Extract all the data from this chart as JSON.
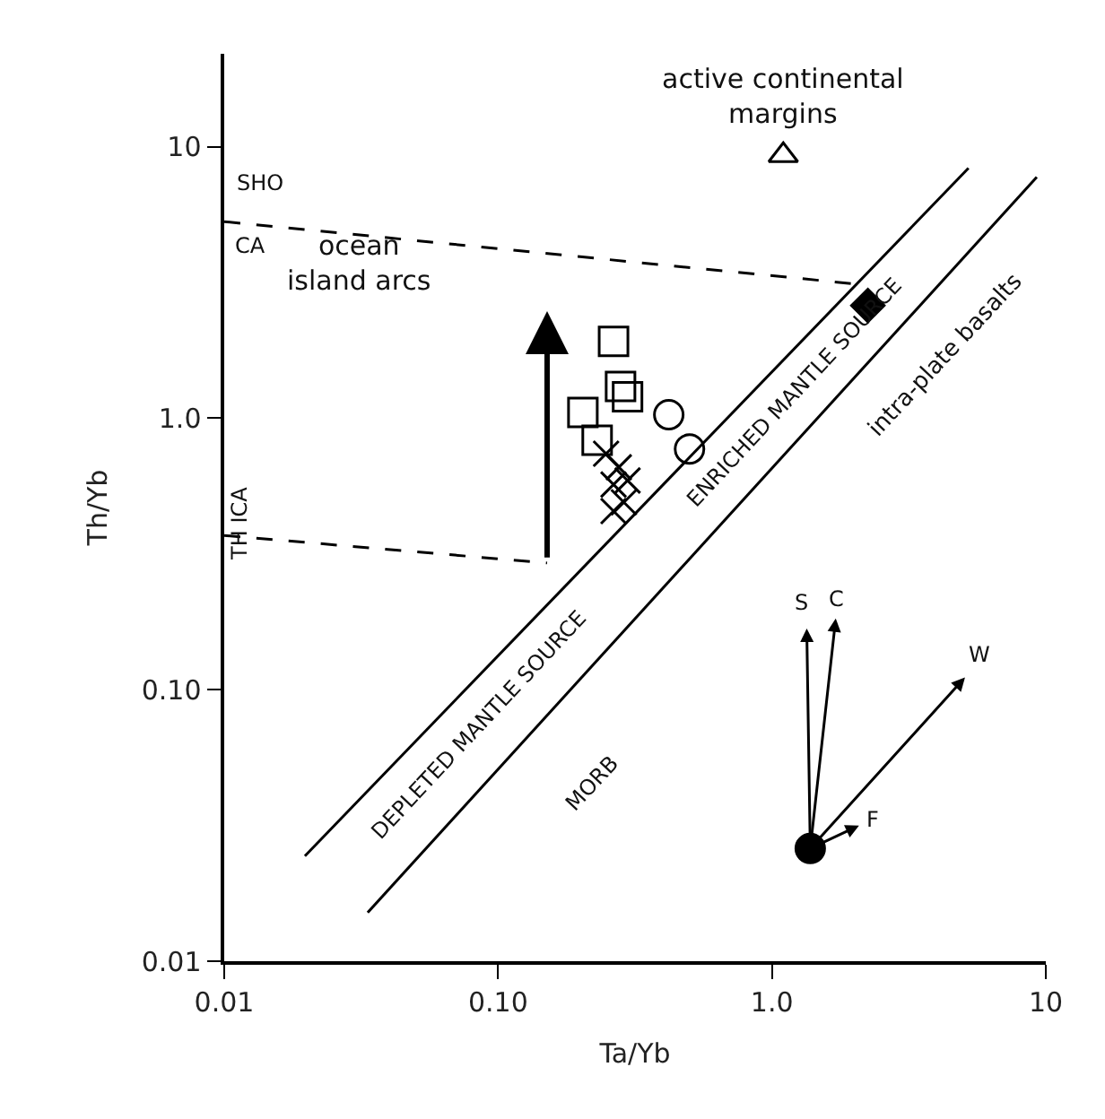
{
  "chart_data": {
    "type": "scatter",
    "xlabel": "Ta/Yb",
    "ylabel": "Th/Yb",
    "log": "xy",
    "xlim": [
      0.01,
      10
    ],
    "ylim": [
      0.01,
      22
    ],
    "xticks": [
      0.01,
      {
        "value": 0.1,
        "label": "0.10"
      },
      {
        "value": 1,
        "label": "1.0"
      },
      10
    ],
    "yticks": [
      0.01,
      {
        "value": 0.1,
        "label": "0.10"
      },
      {
        "value": 1,
        "label": "1.0"
      },
      10
    ],
    "series": [
      {
        "marker": "square",
        "color": "#000000",
        "x": [
          0.264,
          0.28,
          0.297,
          0.204,
          0.23
        ],
        "values": [
          1.92,
          1.31,
          1.2,
          1.05,
          0.83
        ]
      },
      {
        "marker": "circle",
        "color": "#000000",
        "x": [
          0.42,
          0.5
        ],
        "values": [
          1.03,
          0.77
        ]
      },
      {
        "marker": "cross",
        "color": "#000000",
        "x": [
          0.248,
          0.276,
          0.264,
          0.297,
          0.288,
          0.264
        ],
        "values": [
          0.74,
          0.66,
          0.57,
          0.59,
          0.49,
          0.455
        ]
      },
      {
        "marker": "diamond",
        "color": "#000000",
        "x": [
          2.24
        ],
        "values": [
          2.6
        ]
      },
      {
        "marker": "triangle",
        "color": "#000000",
        "x": [
          1.1
        ],
        "values": [
          9.3
        ]
      },
      {
        "marker": "circle",
        "color": "#000000",
        "x": [
          1.38
        ],
        "values": [
          0.026
        ]
      },
      {
        "type": "line",
        "marker": "none",
        "line_style": "solid",
        "color": "#000000",
        "x": [
          0.0197,
          5.22
        ],
        "values": [
          0.0244,
          8.34
        ]
      },
      {
        "type": "line",
        "marker": "none",
        "line_style": "solid",
        "color": "#000000",
        "x": [
          0.0334,
          9.27
        ],
        "values": [
          0.0151,
          7.73
        ]
      },
      {
        "type": "line",
        "marker": "none",
        "line_style": "dashed",
        "color": "#000000",
        "x": [
          0.01,
          2.11
        ],
        "values": [
          5.3,
          3.11
        ]
      },
      {
        "type": "line",
        "marker": "none",
        "line_style": "dashed",
        "color": "#000000",
        "x": [
          0.01,
          0.151
        ],
        "values": [
          0.37,
          0.293
        ]
      }
    ],
    "annotations": [
      "active continental\nmargins",
      "SHO",
      "CA",
      "ocean\nisland arcs",
      "TH ICA",
      "DEPLETED MANTLE SOURCE",
      "ENRICHED MANTLE SOURCE",
      "intra-plate basalts",
      "MORB",
      "S",
      "C",
      "W",
      "F"
    ]
  }
}
